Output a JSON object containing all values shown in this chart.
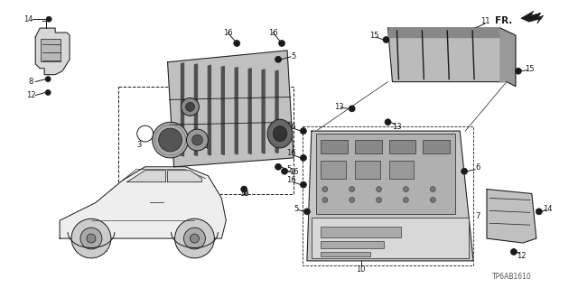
{
  "bg_color": "#ffffff",
  "line_color": "#1a1a1a",
  "gray_fill": "#d8d8d8",
  "dark_fill": "#888888",
  "fig_width": 6.4,
  "fig_height": 3.19,
  "dpi": 100,
  "part_number": "TP6AB1610",
  "fr_text": "FR.",
  "label_fontsize": 6.0,
  "part_num_fontsize": 5.5
}
